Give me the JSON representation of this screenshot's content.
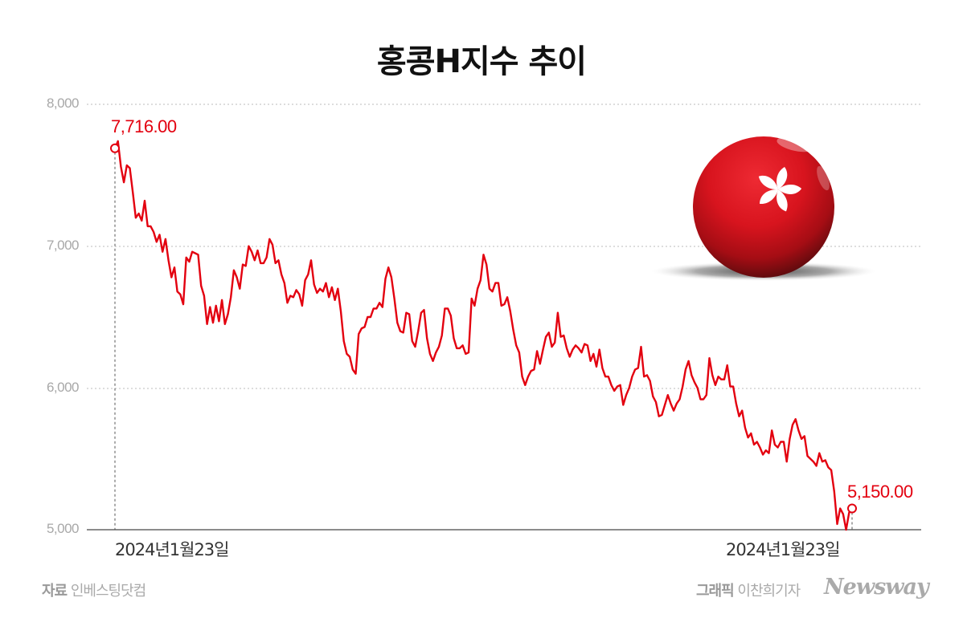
{
  "title": "홍콩H지수 추이",
  "y_axis": {
    "ticks": [
      "8,000",
      "7,000",
      "6,000",
      "5,000"
    ]
  },
  "x_axis": {
    "start_label": "2024년1월23일",
    "end_label": "2024년1월23일"
  },
  "annotations": {
    "start_value": "7,716.00",
    "end_value": "5,150.00"
  },
  "footer": {
    "source_label": "자료",
    "source_value": "인베스팅닷컴",
    "credit_label": "그래픽",
    "credit_value": "이찬희기자",
    "brand": "Newsway"
  },
  "colors": {
    "line": "#e3000f",
    "grid": "#bbbbbb",
    "axis": "#666666"
  },
  "chart_data": {
    "type": "line",
    "title": "홍콩H지수 추이",
    "xlabel": "",
    "ylabel": "",
    "ylim": [
      5000,
      8000
    ],
    "grid": true,
    "legend": null,
    "x_tick_labels": [
      "2024년1월23일",
      "2024년1월23일"
    ],
    "y_tick_labels": [
      "5,000",
      "6,000",
      "7,000",
      "8,000"
    ],
    "annotations": [
      {
        "label": "7,716.00",
        "position": "start"
      },
      {
        "label": "5,150.00",
        "position": "end"
      }
    ],
    "series": [
      {
        "name": "홍콩H지수",
        "values": [
          7690,
          7740,
          7560,
          7450,
          7570,
          7550,
          7380,
          7200,
          7230,
          7180,
          7320,
          7140,
          7140,
          7100,
          7030,
          7080,
          6960,
          7050,
          6900,
          6780,
          6850,
          6680,
          6660,
          6590,
          6920,
          6890,
          6960,
          6950,
          6940,
          6720,
          6650,
          6450,
          6570,
          6460,
          6580,
          6470,
          6620,
          6450,
          6520,
          6640,
          6830,
          6780,
          6700,
          6870,
          6860,
          7000,
          6960,
          6900,
          6970,
          6880,
          6880,
          6920,
          7050,
          7010,
          6880,
          6900,
          6800,
          6740,
          6600,
          6650,
          6640,
          6690,
          6660,
          6580,
          6760,
          6800,
          6900,
          6730,
          6670,
          6700,
          6680,
          6740,
          6640,
          6710,
          6620,
          6700,
          6540,
          6330,
          6240,
          6220,
          6130,
          6100,
          6380,
          6420,
          6430,
          6500,
          6500,
          6560,
          6560,
          6600,
          6570,
          6770,
          6850,
          6780,
          6630,
          6460,
          6400,
          6390,
          6530,
          6520,
          6330,
          6290,
          6400,
          6530,
          6550,
          6350,
          6240,
          6190,
          6250,
          6290,
          6370,
          6560,
          6560,
          6510,
          6350,
          6280,
          6280,
          6300,
          6240,
          6250,
          6630,
          6580,
          6700,
          6760,
          6940,
          6870,
          6700,
          6680,
          6740,
          6740,
          6580,
          6590,
          6640,
          6540,
          6410,
          6300,
          6250,
          6080,
          6020,
          6080,
          6120,
          6130,
          6260,
          6170,
          6270,
          6360,
          6390,
          6290,
          6320,
          6530,
          6360,
          6370,
          6280,
          6220,
          6270,
          6300,
          6280,
          6250,
          6310,
          6300,
          6190,
          6240,
          6150,
          6270,
          6140,
          6080,
          6080,
          6020,
          5980,
          6010,
          6020,
          5880,
          5950,
          6000,
          6080,
          6130,
          6140,
          6290,
          6080,
          6090,
          6050,
          5940,
          5900,
          5800,
          5810,
          5880,
          5950,
          5890,
          5840,
          5890,
          5920,
          6010,
          6130,
          6190,
          6090,
          6040,
          6000,
          5920,
          5920,
          5950,
          6210,
          6090,
          6020,
          6080,
          6060,
          6060,
          6160,
          6010,
          6010,
          5890,
          5800,
          5840,
          5720,
          5650,
          5680,
          5600,
          5620,
          5580,
          5530,
          5560,
          5540,
          5700,
          5600,
          5580,
          5620,
          5620,
          5480,
          5640,
          5740,
          5780,
          5700,
          5640,
          5660,
          5520,
          5500,
          5480,
          5450,
          5540,
          5480,
          5490,
          5440,
          5420,
          5270,
          5040,
          5150,
          5110,
          5000,
          5120,
          5150
        ]
      }
    ]
  }
}
